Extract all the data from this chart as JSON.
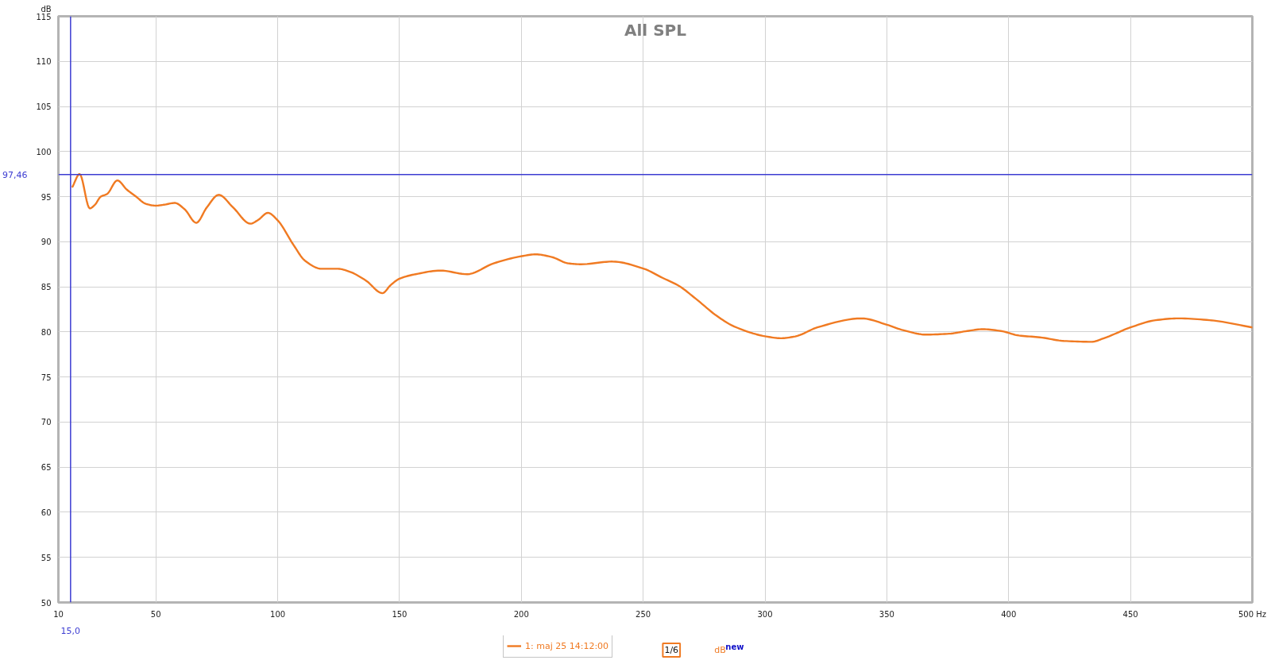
{
  "chart_data": {
    "type": "line",
    "title": "All SPL",
    "ylabel": "dB",
    "series": [
      {
        "name": "1: maj 25 14:12:00",
        "color": "#f07a22",
        "x": [
          15.8,
          18.7,
          22.9,
          25,
          27.4,
          30,
          34.2,
          38,
          41.9,
          45.9,
          50,
          53.3,
          57.8,
          61.8,
          66.6,
          70.9,
          75.8,
          81.7,
          88.8,
          91.9,
          96,
          99.9,
          106.6,
          111.2,
          118,
          124.8,
          129.3,
          136.2,
          143,
          146.4,
          150,
          156.6,
          166.8,
          177.8,
          188.6,
          200.2,
          205.9,
          212.5,
          219.3,
          224.4,
          237.4,
          250.3,
          257.9,
          264.7,
          271.5,
          280.6,
          287.4,
          300.4,
          306.6,
          312.4,
          321.5,
          339.6,
          350,
          356.6,
          366.1,
          375.6,
          383,
          389.4,
          396.8,
          404.2,
          412.8,
          422.6,
          434,
          439.1,
          450,
          460.3,
          469.8,
          482.5,
          500
        ],
        "values": [
          96.1,
          97.5,
          93.7,
          94.1,
          95.0,
          95.3,
          96.8,
          95.8,
          95.0,
          94.2,
          94.0,
          94.1,
          94.3,
          93.6,
          92.1,
          93.8,
          95.2,
          93.8,
          92.0,
          92.4,
          93.2,
          92.4,
          89.6,
          87.9,
          87.0,
          87.0,
          86.7,
          85.7,
          84.3,
          85.2,
          85.9,
          86.4,
          86.8,
          86.4,
          87.6,
          88.4,
          88.6,
          88.3,
          87.6,
          87.5,
          87.8,
          87.0,
          86.0,
          85.1,
          83.7,
          81.7,
          80.6,
          79.5,
          79.3,
          79.5,
          80.5,
          81.5,
          80.8,
          80.2,
          79.7,
          79.8,
          80.1,
          80.3,
          80.1,
          79.6,
          79.4,
          79.0,
          78.9,
          79.3,
          80.5,
          81.3,
          81.5,
          81.3,
          80.5
        ]
      }
    ],
    "xlim": [
      10,
      500
    ],
    "ylim": [
      50,
      115
    ],
    "xticks": [
      10,
      50,
      100,
      150,
      200,
      250,
      300,
      350,
      400,
      450,
      {
        "value": 500,
        "label": "500 Hz"
      }
    ],
    "yticks": [
      50,
      55,
      60,
      65,
      70,
      75,
      80,
      85,
      90,
      95,
      100,
      105,
      110,
      115
    ],
    "grid": true,
    "legend": "bottom",
    "ref_lines": [
      {
        "axis": "x",
        "value": 15,
        "label": "15,0",
        "color": "#3c3cd2"
      },
      {
        "axis": "y",
        "value": 97.46,
        "label": "97,46",
        "color": "#3c3cd2"
      }
    ],
    "annotations": [
      "1/6",
      "dB$^{new}$"
    ]
  }
}
